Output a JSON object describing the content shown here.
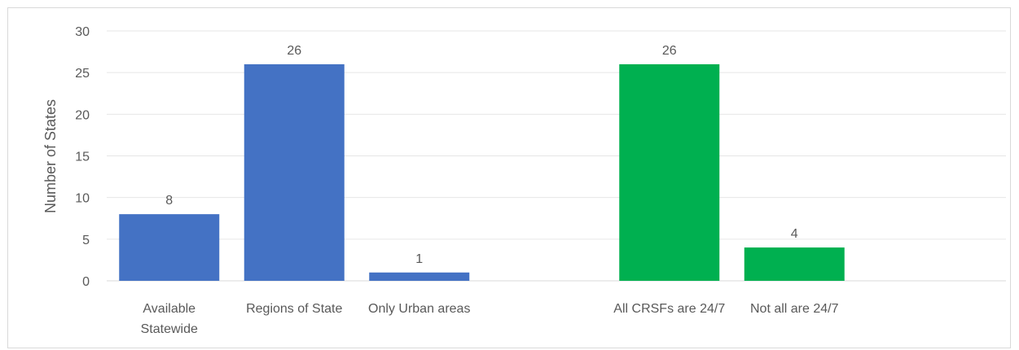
{
  "chart_data": {
    "type": "bar",
    "title": "",
    "xlabel": "",
    "ylabel": "Number of States",
    "ylim": [
      0,
      30
    ],
    "yticks": [
      0,
      5,
      10,
      15,
      20,
      25,
      30
    ],
    "grid": true,
    "legend": "none",
    "groups": [
      {
        "color": "#4472C4",
        "categories": [
          [
            "Available",
            "Statewide"
          ],
          [
            "Regions of State"
          ],
          [
            "Only Urban areas"
          ]
        ],
        "values": [
          8,
          26,
          1
        ]
      },
      {
        "color": "#00B050",
        "categories": [
          [
            "All CRSFs are 24/7"
          ],
          [
            "Not all are 24/7"
          ]
        ],
        "values": [
          26,
          4
        ]
      }
    ]
  }
}
